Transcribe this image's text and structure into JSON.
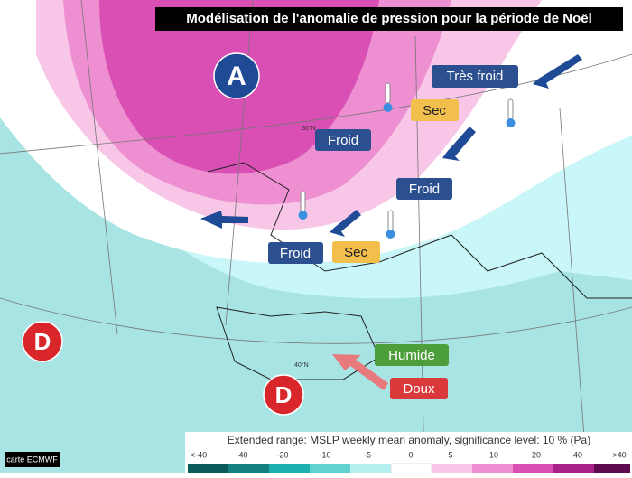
{
  "title": "Modélisation de l'anomalie de pression pour la  période  de Noël",
  "pressure_centers": [
    {
      "label": "A"
    },
    {
      "label": "D"
    },
    {
      "label": "D"
    }
  ],
  "tags": [
    {
      "label": "Très froid"
    },
    {
      "label": "Sec"
    },
    {
      "label": "Froid"
    },
    {
      "label": "Froid"
    },
    {
      "label": "Froid"
    },
    {
      "label": "Sec"
    },
    {
      "label": "Humide"
    },
    {
      "label": "Doux"
    }
  ],
  "grid_labels": [
    "50°N",
    "40°N"
  ],
  "credit": "carte ECMWF",
  "legend": {
    "title": "Extended range: MSLP weekly mean anomaly, significance level: 10 % (Pa)",
    "ticks": [
      "<-40",
      "-40",
      "-20",
      "-10",
      "-5",
      "0",
      "5",
      "10",
      "20",
      "40",
      ">40"
    ]
  }
}
